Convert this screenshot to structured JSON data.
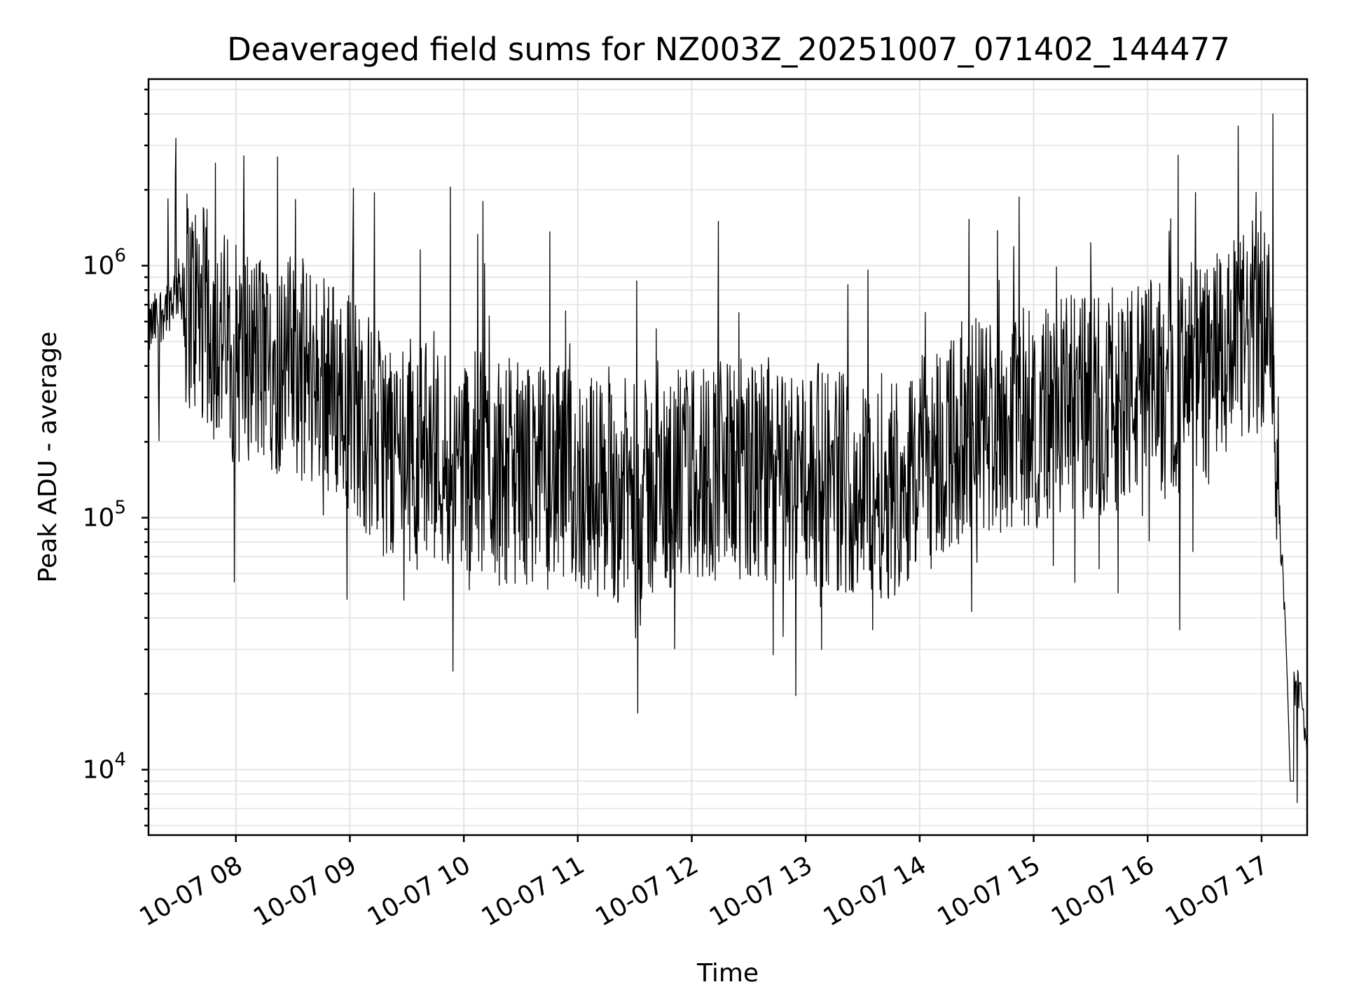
{
  "chart_data": {
    "type": "line",
    "title": "Deaveraged field sums for NZ003Z_20251007_071402_144477",
    "xlabel": "Time",
    "ylabel": "Peak ADU - average",
    "yscale": "log",
    "grid": true,
    "xlim": [
      "2025-10-07 07:14:02",
      "2025-10-07 17:24:00"
    ],
    "ylim": [
      5500,
      5500000
    ],
    "x_ticks": [
      "10-07 08",
      "10-07 09",
      "10-07 10",
      "10-07 11",
      "10-07 12",
      "10-07 13",
      "10-07 14",
      "10-07 15",
      "10-07 16",
      "10-07 17"
    ],
    "y_ticks": [
      10000,
      100000,
      1000000
    ],
    "y_tick_labels": [
      {
        "base": "10",
        "exp": "4"
      },
      {
        "base": "10",
        "exp": "5"
      },
      {
        "base": "10",
        "exp": "6"
      }
    ],
    "series": [
      {
        "style": "thin black line",
        "x": [
          "07:14",
          "07:30",
          "07:45",
          "08:00",
          "08:15",
          "08:30",
          "08:45",
          "09:00",
          "09:15",
          "09:30",
          "09:45",
          "10:00",
          "10:15",
          "10:30",
          "10:45",
          "11:00",
          "11:15",
          "11:30",
          "11:45",
          "12:00",
          "12:15",
          "12:30",
          "12:45",
          "13:00",
          "13:15",
          "13:30",
          "13:45",
          "14:00",
          "14:15",
          "14:30",
          "14:45",
          "15:00",
          "15:15",
          "15:30",
          "15:45",
          "16:00",
          "16:15",
          "16:30",
          "16:45",
          "17:00",
          "17:05",
          "17:10",
          "17:15",
          "17:20",
          "17:24"
        ],
        "baseline": [
          550000,
          820000,
          600000,
          450000,
          420000,
          400000,
          350000,
          300000,
          200000,
          190000,
          180000,
          170000,
          160000,
          150000,
          145000,
          140000,
          130000,
          125000,
          130000,
          150000,
          160000,
          150000,
          140000,
          150000,
          145000,
          130000,
          135000,
          160000,
          200000,
          230000,
          240000,
          250000,
          270000,
          280000,
          300000,
          320000,
          330000,
          380000,
          450000,
          600000,
          500000,
          80000,
          22000,
          21000,
          11000
        ],
        "envelope_max": [
          [
            620000,
            1200000
          ],
          [
            3200000,
            2700000
          ],
          [
            1800000,
            1900000
          ],
          [
            2000000,
            1500000
          ],
          [
            1350000,
            4000000
          ]
        ],
        "envelope_min": [
          [
            7000
          ]
        ]
      }
    ]
  }
}
